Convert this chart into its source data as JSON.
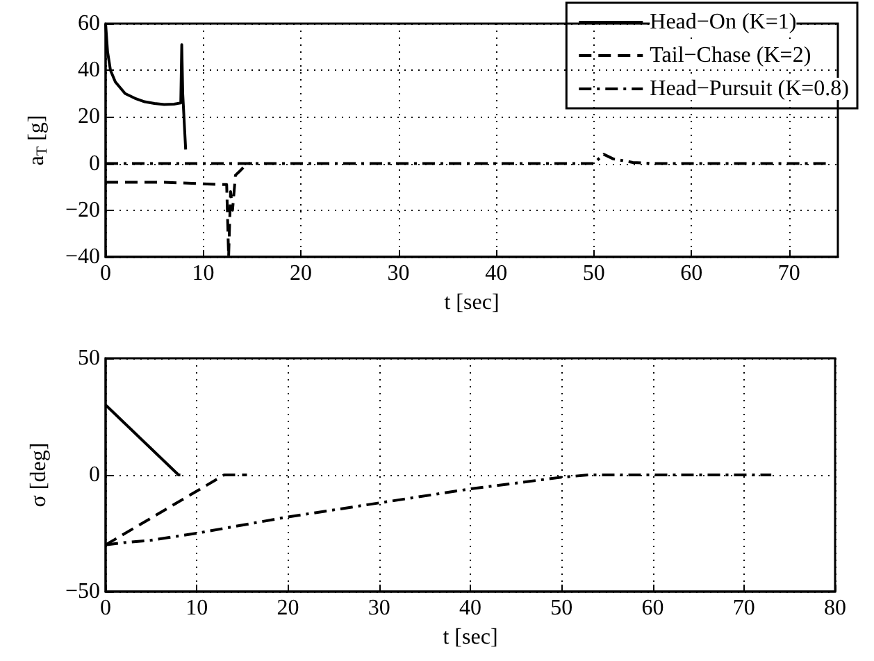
{
  "chart_data": [
    {
      "type": "line",
      "xlabel": "t [sec]",
      "ylabel": "a$_{T}$ [g]",
      "xlim": [
        0,
        75
      ],
      "xticks": [
        0,
        10,
        20,
        30,
        40,
        50,
        60,
        70
      ],
      "ylim": [
        -40,
        60
      ],
      "yticks": [
        -40,
        -20,
        0,
        20,
        40,
        60
      ],
      "grid": true,
      "legend": "top right",
      "marker": "none",
      "series": [
        {
          "name": "Head−On (K=1)",
          "color": "#000000",
          "line_style": "solid",
          "x": [
            0,
            0.2,
            0.5,
            1,
            2,
            3,
            4,
            5,
            6,
            7,
            7.7,
            7.8,
            7.9,
            8.2
          ],
          "values": [
            60,
            48,
            40,
            35,
            30,
            28,
            26.5,
            25.8,
            25.3,
            25.5,
            26,
            51,
            30,
            6
          ]
        },
        {
          "name": "Tail−Chase (K=2)",
          "color": "#000000",
          "line_style": "dashed",
          "x": [
            0,
            6,
            12,
            12.4,
            12.6,
            12.8,
            13,
            13.3,
            13.8,
            14.5,
            15
          ],
          "values": [
            -8,
            -8,
            -9,
            -9,
            -40,
            -12,
            -20,
            -5,
            -3,
            0,
            0
          ]
        },
        {
          "name": "Head−Pursuit (K=0.8)",
          "color": "#000000",
          "line_style": "dashdot",
          "x": [
            0,
            20,
            40,
            50,
            51,
            52,
            54,
            56,
            65,
            74
          ],
          "values": [
            0,
            0,
            0,
            0,
            4,
            2,
            0.5,
            0,
            0,
            0
          ]
        }
      ]
    },
    {
      "type": "line",
      "xlabel": "t [sec]",
      "ylabel": "σ [deg]",
      "xlim": [
        0,
        80
      ],
      "xticks": [
        0,
        10,
        20,
        30,
        40,
        50,
        60,
        70,
        80
      ],
      "ylim": [
        -50,
        50
      ],
      "yticks": [
        -50,
        0,
        50
      ],
      "grid": true,
      "legend": false,
      "marker": "none",
      "series": [
        {
          "color": "#000000",
          "line_style": "solid",
          "x": [
            0,
            8,
            8.2
          ],
          "values": [
            30,
            0,
            0
          ]
        },
        {
          "color": "#000000",
          "line_style": "dashed",
          "x": [
            0,
            13,
            15.5
          ],
          "values": [
            -30,
            0,
            0
          ]
        },
        {
          "color": "#000000",
          "line_style": "dashdot",
          "x": [
            0,
            2,
            5,
            10,
            20,
            30,
            40,
            50,
            53,
            73
          ],
          "values": [
            -30,
            -29,
            -28,
            -25,
            -18,
            -12,
            -6,
            -1,
            0,
            0
          ]
        }
      ]
    }
  ]
}
